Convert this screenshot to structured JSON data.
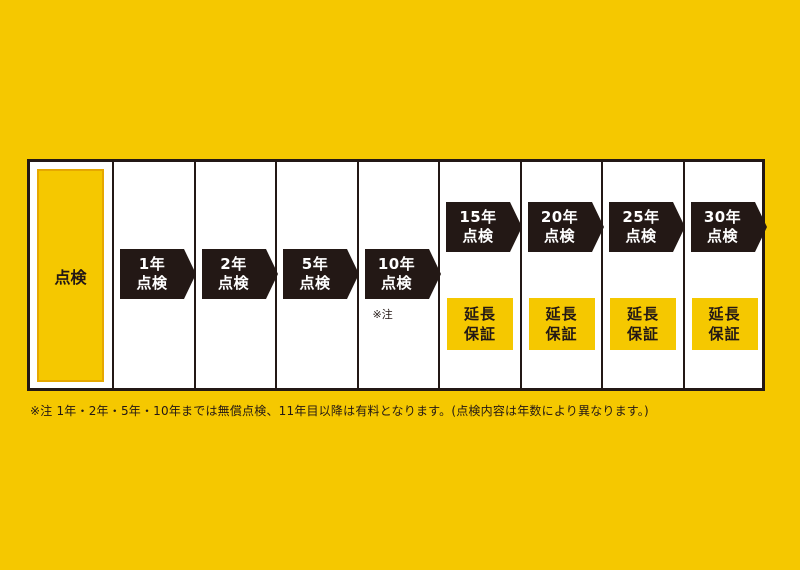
{
  "header_label": "点検",
  "steps": [
    {
      "line1": "1年",
      "line2": "点検"
    },
    {
      "line1": "2年",
      "line2": "点検"
    },
    {
      "line1": "5年",
      "line2": "点検"
    },
    {
      "line1": "10年",
      "line2": "点検",
      "note": "※注"
    },
    {
      "line1": "15年",
      "line2": "点検",
      "warranty": [
        "延長",
        "保証"
      ]
    },
    {
      "line1": "20年",
      "line2": "点検",
      "warranty": [
        "延長",
        "保証"
      ]
    },
    {
      "line1": "25年",
      "line2": "点検",
      "warranty": [
        "延長",
        "保証"
      ]
    },
    {
      "line1": "30年",
      "line2": "点検",
      "warranty": [
        "延長",
        "保証"
      ]
    }
  ],
  "footnote": "※注 1年・2年・5年・10年までは無償点検、11年目以降は有料となります。(点検内容は年数により異なります。)",
  "colors": {
    "background": "#f5c800",
    "arrow": "#231815",
    "cell": "#ffffff"
  }
}
